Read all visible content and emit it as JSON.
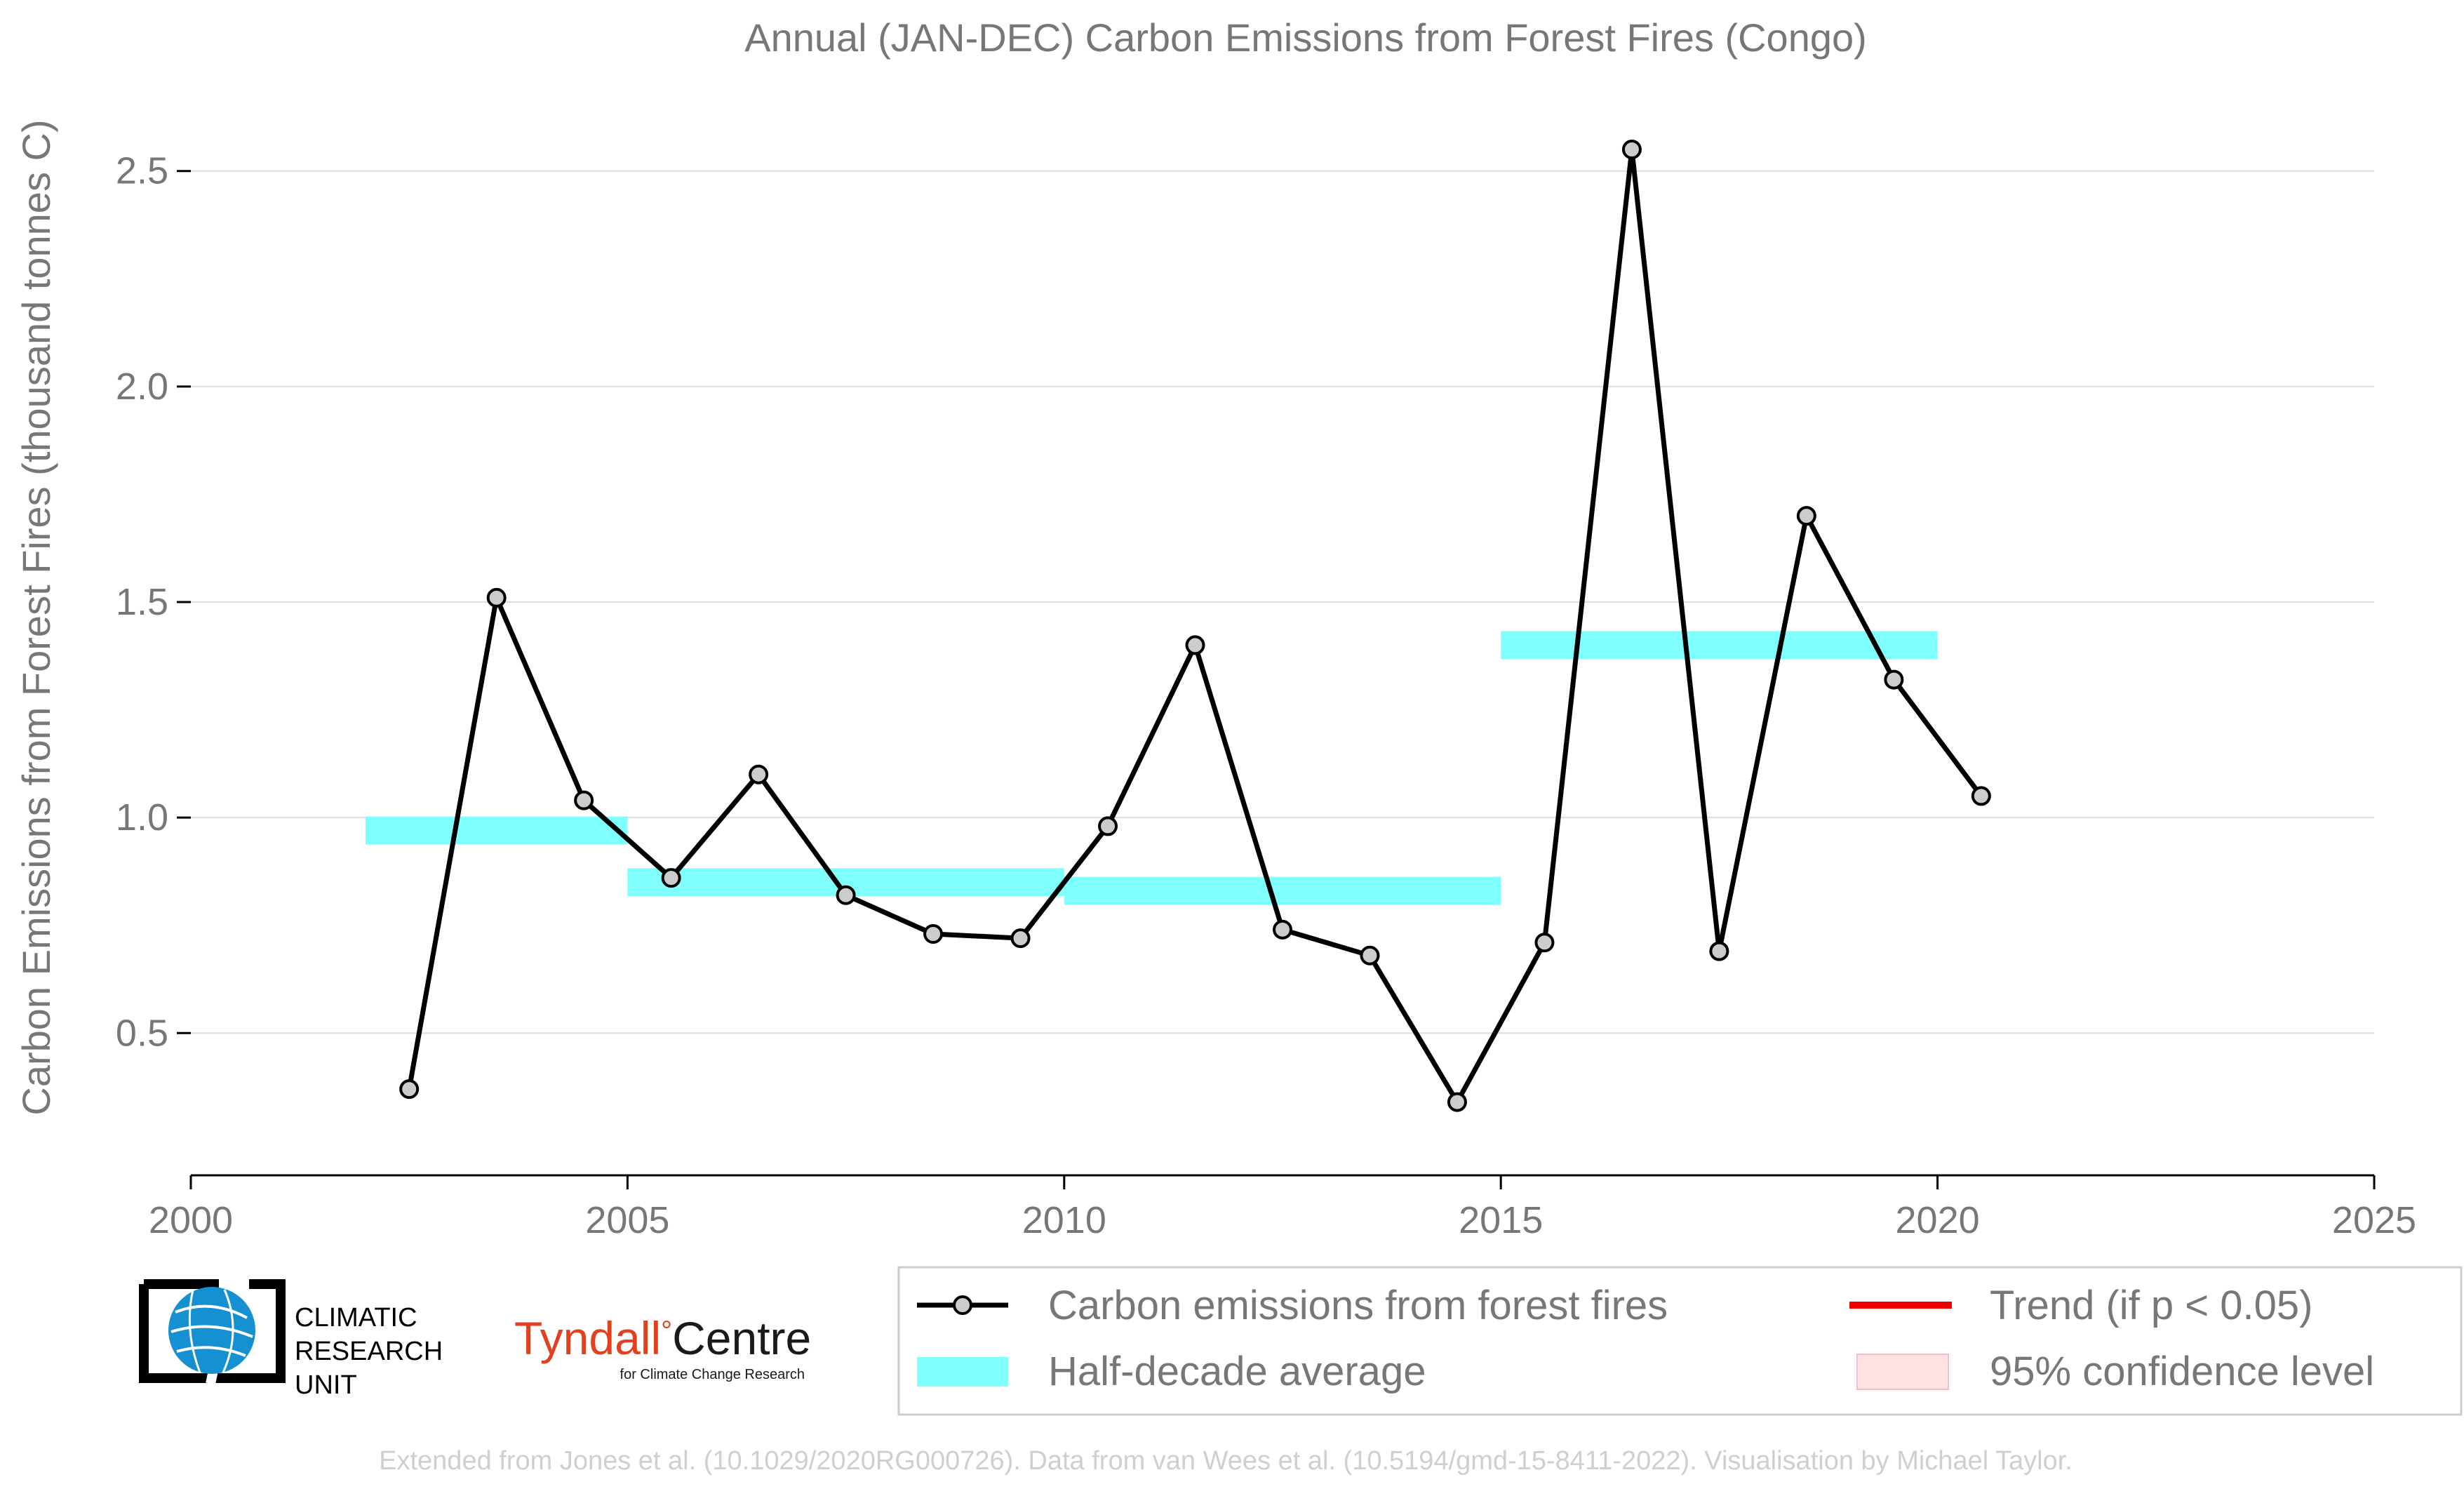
{
  "chart_data": {
    "type": "line",
    "title": "Annual (JAN-DEC) Carbon Emissions from Forest Fires (Congo)",
    "xlabel": "",
    "ylabel": "Carbon Emissions from Forest Fires (thousand tonnes C)",
    "xlim": [
      2000,
      2025
    ],
    "ylim": [
      0.17,
      2.62
    ],
    "x_ticks": [
      2000,
      2005,
      2010,
      2015,
      2020,
      2025
    ],
    "y_ticks": [
      0.5,
      1.0,
      1.5,
      2.0,
      2.5
    ],
    "y_tick_labels": [
      "0.5",
      "1.0",
      "1.5",
      "2.0",
      "2.5"
    ],
    "grid": "horizontal",
    "series": [
      {
        "name": "Carbon emissions from forest fires",
        "color": "#000000",
        "marker_fill": "#cccccc",
        "x": [
          2002.5,
          2003.5,
          2004.5,
          2005.5,
          2006.5,
          2007.5,
          2008.5,
          2009.5,
          2010.5,
          2011.5,
          2012.5,
          2013.5,
          2014.5,
          2015.5,
          2016.5,
          2017.5,
          2018.5,
          2019.5,
          2020.5
        ],
        "values": [
          0.37,
          1.51,
          1.04,
          0.86,
          1.1,
          0.82,
          0.73,
          0.72,
          0.98,
          1.4,
          0.74,
          0.68,
          0.34,
          0.71,
          2.55,
          0.69,
          1.7,
          1.32,
          1.05
        ]
      }
    ],
    "half_decade_average": {
      "name": "Half-decade average",
      "color": "#80ffff",
      "segments": [
        {
          "start": 2002,
          "end": 2005,
          "value": 0.97
        },
        {
          "start": 2005,
          "end": 2010,
          "value": 0.85
        },
        {
          "start": 2010,
          "end": 2015,
          "value": 0.83
        },
        {
          "start": 2015,
          "end": 2020,
          "value": 1.4
        }
      ]
    },
    "legend": {
      "placement": "bottom-right",
      "entries": [
        {
          "label": "Carbon emissions from forest fires",
          "kind": "line-marker",
          "color": "#000000"
        },
        {
          "label": "Trend (if p < 0.05)",
          "kind": "line",
          "color": "#ee0000"
        },
        {
          "label": "Half-decade average",
          "kind": "band",
          "color": "#80ffff"
        },
        {
          "label": "95% confidence level",
          "kind": "patch",
          "color": "#ffe0e3"
        }
      ]
    }
  },
  "logos": {
    "cru": {
      "icon": "globe-icon",
      "lines": [
        "CLIMATIC",
        "RESEARCH",
        "UNIT"
      ]
    },
    "tyndall": {
      "part1": "Tyndall",
      "degree": "°",
      "part2": "Centre",
      "subtitle": "for Climate Change Research"
    }
  },
  "footer": "Extended from Jones et al. (10.1029/2020RG000726). Data from van Wees et al. (10.5194/gmd-15-8411-2022). Visualisation by Michael Taylor."
}
